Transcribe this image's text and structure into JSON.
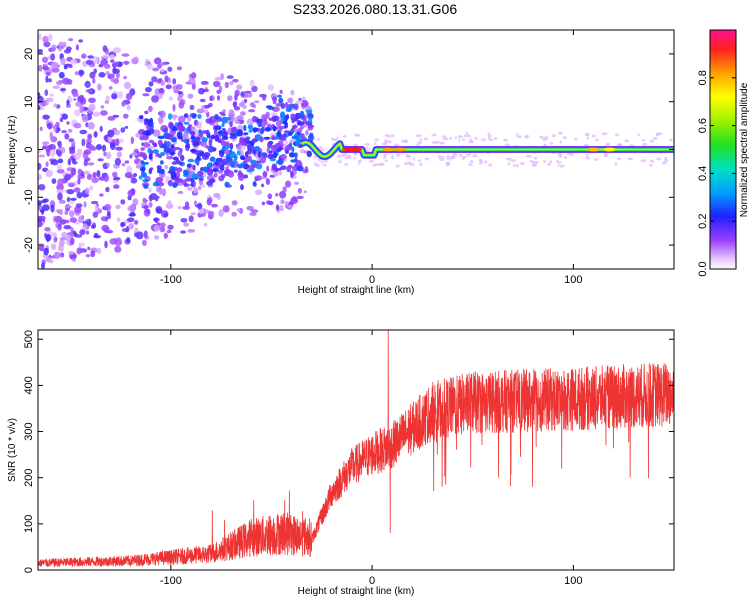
{
  "title": "S233.2026.080.13.31.G06",
  "chart_data": [
    {
      "type": "heatmap",
      "name": "spectrogram",
      "xlabel": "Height of straight line (km)",
      "ylabel": "Frequency (Hz)",
      "xlim": [
        -166,
        150
      ],
      "ylim": [
        -25,
        25
      ],
      "xticks": [
        -100,
        0,
        100
      ],
      "yticks": [
        -20,
        -10,
        0,
        10,
        20
      ],
      "colorbar": {
        "label": "Normalized spectral amplitude",
        "range": [
          0,
          1
        ],
        "ticks": [
          0.0,
          0.2,
          0.4,
          0.6,
          0.8
        ],
        "tick_labels": [
          "0.0",
          "0.2",
          "0.4",
          "0.6",
          "0.8"
        ]
      },
      "features": {
        "carrier_frequency_hz": 0,
        "noise_region_km": [
          -166,
          -30
        ],
        "strong_signal_km": [
          -10,
          150
        ]
      }
    },
    {
      "type": "line",
      "name": "snr",
      "xlabel": "Height of straight line (km)",
      "ylabel": "SNR (10 * v/v)",
      "xlim": [
        -166,
        150
      ],
      "ylim": [
        0,
        520
      ],
      "xticks": [
        -100,
        0,
        100
      ],
      "yticks": [
        0,
        100,
        200,
        300,
        400,
        500
      ],
      "color": "#ee3333",
      "trend": {
        "x": [
          -166,
          -120,
          -80,
          -60,
          -45,
          -30,
          -20,
          -10,
          0,
          10,
          20,
          30,
          50,
          80,
          110,
          130,
          150
        ],
        "y": [
          15,
          20,
          35,
          70,
          80,
          70,
          180,
          240,
          270,
          290,
          330,
          370,
          390,
          395,
          400,
          405,
          410
        ]
      },
      "spikes": [
        {
          "x": 8,
          "y": 520
        },
        {
          "x": 9,
          "y": 80
        }
      ]
    }
  ]
}
